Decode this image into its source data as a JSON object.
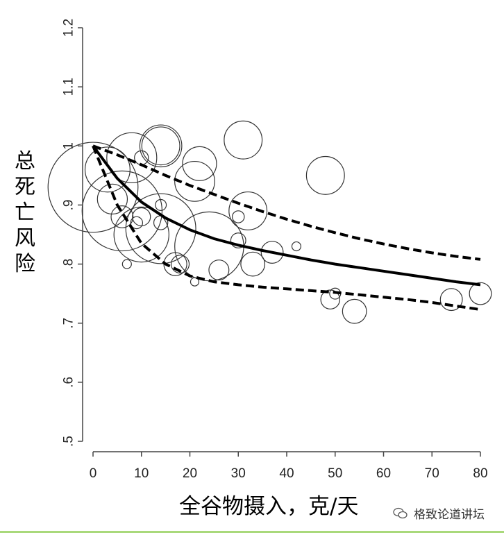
{
  "chart_data": {
    "type": "scatter",
    "xlabel": "全谷物摄入，克/天",
    "ylabel": "总死亡风险",
    "xlim": [
      0,
      80
    ],
    "ylim": [
      0.5,
      1.2
    ],
    "x_ticks": [
      0,
      10,
      20,
      30,
      40,
      50,
      60,
      70,
      80
    ],
    "x_tick_labels": [
      "0",
      "10",
      "20",
      "30",
      "40",
      "50",
      "60",
      "70",
      "80"
    ],
    "y_ticks": [
      0.5,
      0.6,
      0.7,
      0.8,
      0.9,
      1.0,
      1.1,
      1.2
    ],
    "y_tick_labels": [
      ".5",
      ".6",
      ".7",
      ".8",
      ".9",
      "1",
      "1.1",
      "1.2"
    ],
    "grid": false,
    "bubbles": [
      {
        "x": 0,
        "y": 0.93,
        "size": 0.9
      },
      {
        "x": 3,
        "y": 0.96,
        "size": 0.45
      },
      {
        "x": 4,
        "y": 0.91,
        "size": 0.3
      },
      {
        "x": 6,
        "y": 0.89,
        "size": 0.8
      },
      {
        "x": 6,
        "y": 0.88,
        "size": 0.22
      },
      {
        "x": 7,
        "y": 0.8,
        "size": 0.09
      },
      {
        "x": 8,
        "y": 0.98,
        "size": 0.5
      },
      {
        "x": 9,
        "y": 0.87,
        "size": 0.12
      },
      {
        "x": 10,
        "y": 0.98,
        "size": 0.14
      },
      {
        "x": 10,
        "y": 0.85,
        "size": 0.55
      },
      {
        "x": 10,
        "y": 0.88,
        "size": 0.18
      },
      {
        "x": 14,
        "y": 1.0,
        "size": 0.42
      },
      {
        "x": 14,
        "y": 0.87,
        "size": 0.14
      },
      {
        "x": 14,
        "y": 1.0,
        "size": 0.38
      },
      {
        "x": 14,
        "y": 0.9,
        "size": 0.11
      },
      {
        "x": 14,
        "y": 0.86,
        "size": 0.7
      },
      {
        "x": 17,
        "y": 0.8,
        "size": 0.23
      },
      {
        "x": 18,
        "y": 0.8,
        "size": 0.18
      },
      {
        "x": 21,
        "y": 0.94,
        "size": 0.4
      },
      {
        "x": 22,
        "y": 0.97,
        "size": 0.34
      },
      {
        "x": 21,
        "y": 0.77,
        "size": 0.08
      },
      {
        "x": 24,
        "y": 0.83,
        "size": 0.69
      },
      {
        "x": 26,
        "y": 0.79,
        "size": 0.2
      },
      {
        "x": 30,
        "y": 0.84,
        "size": 0.15
      },
      {
        "x": 30,
        "y": 0.88,
        "size": 0.12
      },
      {
        "x": 31,
        "y": 1.01,
        "size": 0.38
      },
      {
        "x": 32,
        "y": 0.89,
        "size": 0.38
      },
      {
        "x": 33,
        "y": 0.8,
        "size": 0.24
      },
      {
        "x": 37,
        "y": 0.82,
        "size": 0.22
      },
      {
        "x": 42,
        "y": 0.83,
        "size": 0.09
      },
      {
        "x": 48,
        "y": 0.95,
        "size": 0.38
      },
      {
        "x": 49,
        "y": 0.74,
        "size": 0.19
      },
      {
        "x": 50,
        "y": 0.75,
        "size": 0.11
      },
      {
        "x": 54,
        "y": 0.72,
        "size": 0.24
      },
      {
        "x": 74,
        "y": 0.74,
        "size": 0.22
      },
      {
        "x": 80,
        "y": 0.75,
        "size": 0.22
      }
    ],
    "lines": [
      {
        "style": "solid",
        "x": [
          0,
          5,
          10,
          15,
          20,
          25,
          30,
          35,
          40,
          45,
          50,
          55,
          60,
          65,
          70,
          75,
          80
        ],
        "y": [
          1.0,
          0.945,
          0.905,
          0.878,
          0.858,
          0.843,
          0.832,
          0.823,
          0.815,
          0.807,
          0.8,
          0.794,
          0.788,
          0.782,
          0.776,
          0.77,
          0.765
        ]
      },
      {
        "style": "dashed",
        "x": [
          0,
          5,
          10,
          15,
          20,
          25,
          30,
          35,
          40,
          45,
          50,
          55,
          60,
          65,
          70,
          75,
          80
        ],
        "y": [
          1.0,
          0.985,
          0.968,
          0.95,
          0.933,
          0.918,
          0.903,
          0.889,
          0.876,
          0.864,
          0.853,
          0.843,
          0.834,
          0.826,
          0.819,
          0.813,
          0.808
        ]
      },
      {
        "style": "dashed",
        "x": [
          0,
          5,
          10,
          15,
          20,
          25,
          30,
          35,
          40,
          45,
          50,
          55,
          60,
          65,
          70,
          75,
          80
        ],
        "y": [
          1.0,
          0.9,
          0.835,
          0.8,
          0.78,
          0.77,
          0.765,
          0.761,
          0.758,
          0.755,
          0.752,
          0.748,
          0.744,
          0.74,
          0.735,
          0.729,
          0.723
        ]
      }
    ]
  },
  "watermark": "格致论道讲坛"
}
